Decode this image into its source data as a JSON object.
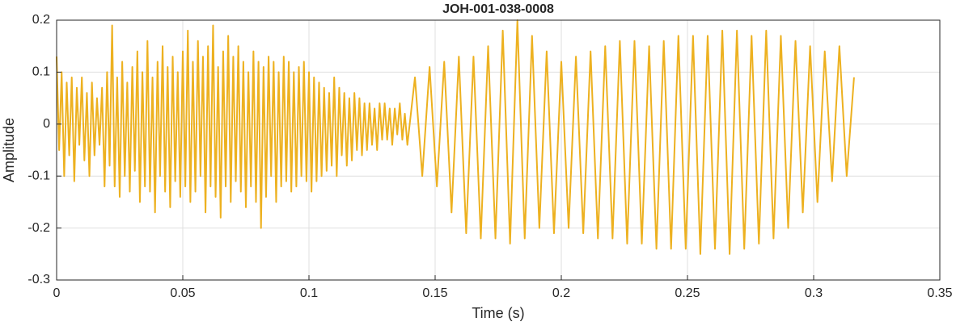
{
  "chart_data": {
    "type": "line",
    "title": "JOH-001-038-0008",
    "xlabel": "Time (s)",
    "ylabel": "Amplitude",
    "color": "#EDB120",
    "grid": true,
    "xlim": [
      0,
      0.35
    ],
    "xticks": [
      0,
      0.05,
      0.1,
      0.15,
      0.2,
      0.25,
      0.3,
      0.35
    ],
    "ylim": [
      -0.3,
      0.2
    ],
    "yticks": [
      -0.3,
      -0.2,
      -0.1,
      0,
      0.1,
      0.2
    ],
    "x": [
      0,
      0.001,
      0.002,
      0.003,
      0.004,
      0.005,
      0.006,
      0.007,
      0.008,
      0.009,
      0.01,
      0.011,
      0.012,
      0.013,
      0.014,
      0.015,
      0.016,
      0.017,
      0.018,
      0.019,
      0.02,
      0.021,
      0.022,
      0.023,
      0.024,
      0.025,
      0.026,
      0.027,
      0.028,
      0.029,
      0.03,
      0.031,
      0.032,
      0.033,
      0.034,
      0.035,
      0.036,
      0.037,
      0.038,
      0.039,
      0.04,
      0.041,
      0.042,
      0.043,
      0.044,
      0.045,
      0.046,
      0.047,
      0.048,
      0.049,
      0.05,
      0.051,
      0.052,
      0.053,
      0.054,
      0.055,
      0.056,
      0.057,
      0.058,
      0.059,
      0.06,
      0.061,
      0.062,
      0.063,
      0.064,
      0.065,
      0.066,
      0.067,
      0.068,
      0.069,
      0.07,
      0.071,
      0.072,
      0.073,
      0.074,
      0.075,
      0.076,
      0.077,
      0.078,
      0.079,
      0.08,
      0.081,
      0.082,
      0.083,
      0.084,
      0.085,
      0.086,
      0.087,
      0.088,
      0.089,
      0.09,
      0.091,
      0.092,
      0.093,
      0.094,
      0.095,
      0.096,
      0.097,
      0.098,
      0.099,
      0.1,
      0.101,
      0.102,
      0.103,
      0.104,
      0.105,
      0.106,
      0.107,
      0.108,
      0.109,
      0.11,
      0.111,
      0.112,
      0.113,
      0.114,
      0.115,
      0.116,
      0.117,
      0.118,
      0.119,
      0.12,
      0.121,
      0.122,
      0.123,
      0.124,
      0.125,
      0.126,
      0.127,
      0.128,
      0.129,
      0.13,
      0.131,
      0.132,
      0.133,
      0.134,
      0.135,
      0.136,
      0.137,
      0.138,
      0.139,
      0.142,
      0.1449,
      0.1478,
      0.1507,
      0.1536,
      0.1565,
      0.1594,
      0.1623,
      0.1652,
      0.1681,
      0.171,
      0.1739,
      0.1768,
      0.1797,
      0.1826,
      0.1855,
      0.1884,
      0.1913,
      0.1942,
      0.1971,
      0.2,
      0.2029,
      0.2058,
      0.2087,
      0.2116,
      0.2145,
      0.2174,
      0.2203,
      0.2232,
      0.2261,
      0.229,
      0.2319,
      0.2348,
      0.2377,
      0.2406,
      0.2435,
      0.2464,
      0.2493,
      0.2522,
      0.2551,
      0.258,
      0.2609,
      0.2638,
      0.2667,
      0.2696,
      0.2725,
      0.2754,
      0.2783,
      0.2812,
      0.2841,
      0.287,
      0.2899,
      0.2928,
      0.2957,
      0.2986,
      0.3015,
      0.3044,
      0.3073,
      0.3102,
      0.3131,
      0.316
    ],
    "values": [
      0.13,
      -0.05,
      0.1,
      -0.1,
      0.08,
      -0.06,
      0.09,
      -0.11,
      0.07,
      -0.04,
      0.09,
      -0.07,
      0.06,
      -0.1,
      0.08,
      -0.06,
      0.05,
      -0.04,
      0.07,
      -0.12,
      0.1,
      -0.08,
      0.19,
      -0.12,
      0.09,
      -0.14,
      0.12,
      -0.1,
      0.08,
      -0.13,
      0.11,
      -0.09,
      0.14,
      -0.15,
      0.1,
      -0.12,
      0.16,
      -0.13,
      0.09,
      -0.17,
      0.12,
      -0.1,
      0.15,
      -0.13,
      0.11,
      -0.16,
      0.13,
      -0.11,
      0.1,
      -0.14,
      0.14,
      -0.12,
      0.18,
      -0.15,
      0.12,
      -0.13,
      0.16,
      -0.1,
      0.13,
      -0.17,
      0.15,
      -0.12,
      0.19,
      -0.14,
      0.11,
      -0.18,
      0.14,
      -0.12,
      0.17,
      -0.15,
      0.13,
      -0.11,
      0.15,
      -0.13,
      0.12,
      -0.16,
      0.1,
      -0.12,
      0.14,
      -0.15,
      0.12,
      -0.2,
      0.11,
      -0.14,
      0.13,
      -0.1,
      0.12,
      -0.15,
      0.1,
      -0.12,
      0.13,
      -0.11,
      0.12,
      -0.13,
      0.1,
      -0.12,
      0.11,
      -0.1,
      0.12,
      -0.11,
      0.1,
      -0.13,
      0.09,
      -0.11,
      0.08,
      -0.1,
      0.07,
      -0.09,
      0.06,
      -0.08,
      0.09,
      -0.1,
      0.07,
      -0.06,
      0.06,
      -0.08,
      0.05,
      -0.07,
      0.06,
      -0.05,
      0.05,
      -0.06,
      0.04,
      -0.05,
      0.04,
      -0.04,
      0.03,
      -0.05,
      0.04,
      -0.03,
      0.04,
      -0.03,
      0.03,
      -0.04,
      0.03,
      -0.02,
      0.04,
      -0.03,
      0.02,
      -0.04,
      0.09,
      -0.1,
      0.11,
      -0.12,
      0.12,
      -0.17,
      0.13,
      -0.21,
      0.13,
      -0.22,
      0.15,
      -0.22,
      0.18,
      -0.23,
      0.2,
      -0.22,
      0.17,
      -0.2,
      0.14,
      -0.21,
      0.12,
      -0.2,
      0.13,
      -0.21,
      0.14,
      -0.22,
      0.15,
      -0.22,
      0.16,
      -0.23,
      0.16,
      -0.23,
      0.15,
      -0.24,
      0.16,
      -0.24,
      0.17,
      -0.24,
      0.17,
      -0.25,
      0.17,
      -0.24,
      0.18,
      -0.25,
      0.18,
      -0.24,
      0.17,
      -0.23,
      0.18,
      -0.22,
      0.17,
      -0.2,
      0.16,
      -0.17,
      0.15,
      -0.15,
      0.14,
      -0.11,
      0.15,
      -0.1,
      0.09
    ]
  }
}
